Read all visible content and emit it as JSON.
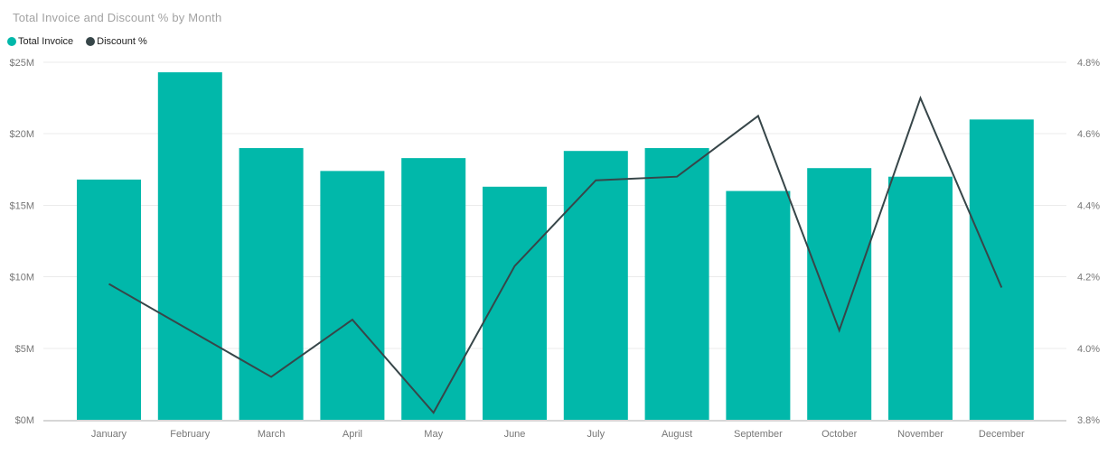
{
  "title": "Total Invoice and Discount % by Month",
  "legend": {
    "items": [
      {
        "label": "Total Invoice",
        "swatch": "bar-swatch",
        "color": "#01b8aa"
      },
      {
        "label": "Discount %",
        "swatch": "line-swatch",
        "color": "#374649"
      }
    ]
  },
  "colors": {
    "bar": "#01b8aa",
    "line": "#374649",
    "grid": "#ebebeb",
    "axis_line": "#d6d6d6",
    "axis_text": "#777777",
    "title_text": "#a2a2a2",
    "legend_text": "#212121",
    "background": "#ffffff"
  },
  "chart_data": {
    "type": "bar",
    "subtype": "combo-bar-line-dual-axis",
    "title": "Total Invoice and Discount % by Month",
    "categories": [
      "January",
      "February",
      "March",
      "April",
      "May",
      "June",
      "July",
      "August",
      "September",
      "October",
      "November",
      "December"
    ],
    "series": [
      {
        "name": "Total Invoice",
        "type": "bar",
        "axis": "left",
        "unit": "$M",
        "values": [
          16.8,
          24.3,
          19.0,
          17.4,
          18.3,
          16.3,
          18.8,
          19.0,
          16.0,
          17.6,
          17.0,
          21.0
        ]
      },
      {
        "name": "Discount %",
        "type": "line",
        "axis": "right",
        "unit": "%",
        "values": [
          4.18,
          4.05,
          3.92,
          4.08,
          3.82,
          4.23,
          4.47,
          4.48,
          4.65,
          4.05,
          4.7,
          4.17
        ]
      }
    ],
    "left_axis": {
      "min": 0,
      "max": 25,
      "ticks": [
        "$0M",
        "$5M",
        "$10M",
        "$15M",
        "$20M",
        "$25M"
      ]
    },
    "right_axis": {
      "min": 3.8,
      "max": 4.8,
      "ticks": [
        "3.8%",
        "4.0%",
        "4.2%",
        "4.4%",
        "4.6%",
        "4.8%"
      ]
    },
    "grid": true,
    "legend_position": "top-left",
    "xlabel": "",
    "ylabel_left": "Total Invoice",
    "ylabel_right": "Discount %"
  }
}
